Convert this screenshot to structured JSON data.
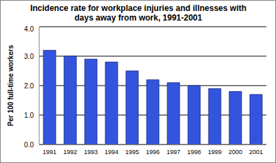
{
  "chart_data": {
    "type": "bar",
    "title": "Incidence rate for workplace injuries and illnesses with days away from work, 1991-2001",
    "y_label": "Per 100 full-time workers",
    "categories": [
      "1991",
      "1992",
      "1993",
      "1994",
      "1995",
      "1996",
      "1997",
      "1998",
      "1999",
      "2000",
      "2001"
    ],
    "values": [
      3.2,
      3.0,
      2.9,
      2.8,
      2.5,
      2.2,
      2.1,
      2.0,
      1.9,
      1.8,
      1.7
    ],
    "color": "#3355dd",
    "ylim": [
      0,
      4
    ],
    "yticks": [
      {
        "value": 0,
        "label": "0.0"
      },
      {
        "value": 1,
        "label": "1.0"
      },
      {
        "value": 2,
        "label": "2.0"
      },
      {
        "value": 3,
        "label": "3.0"
      },
      {
        "value": 4,
        "label": "4.0"
      }
    ],
    "grid": true
  }
}
